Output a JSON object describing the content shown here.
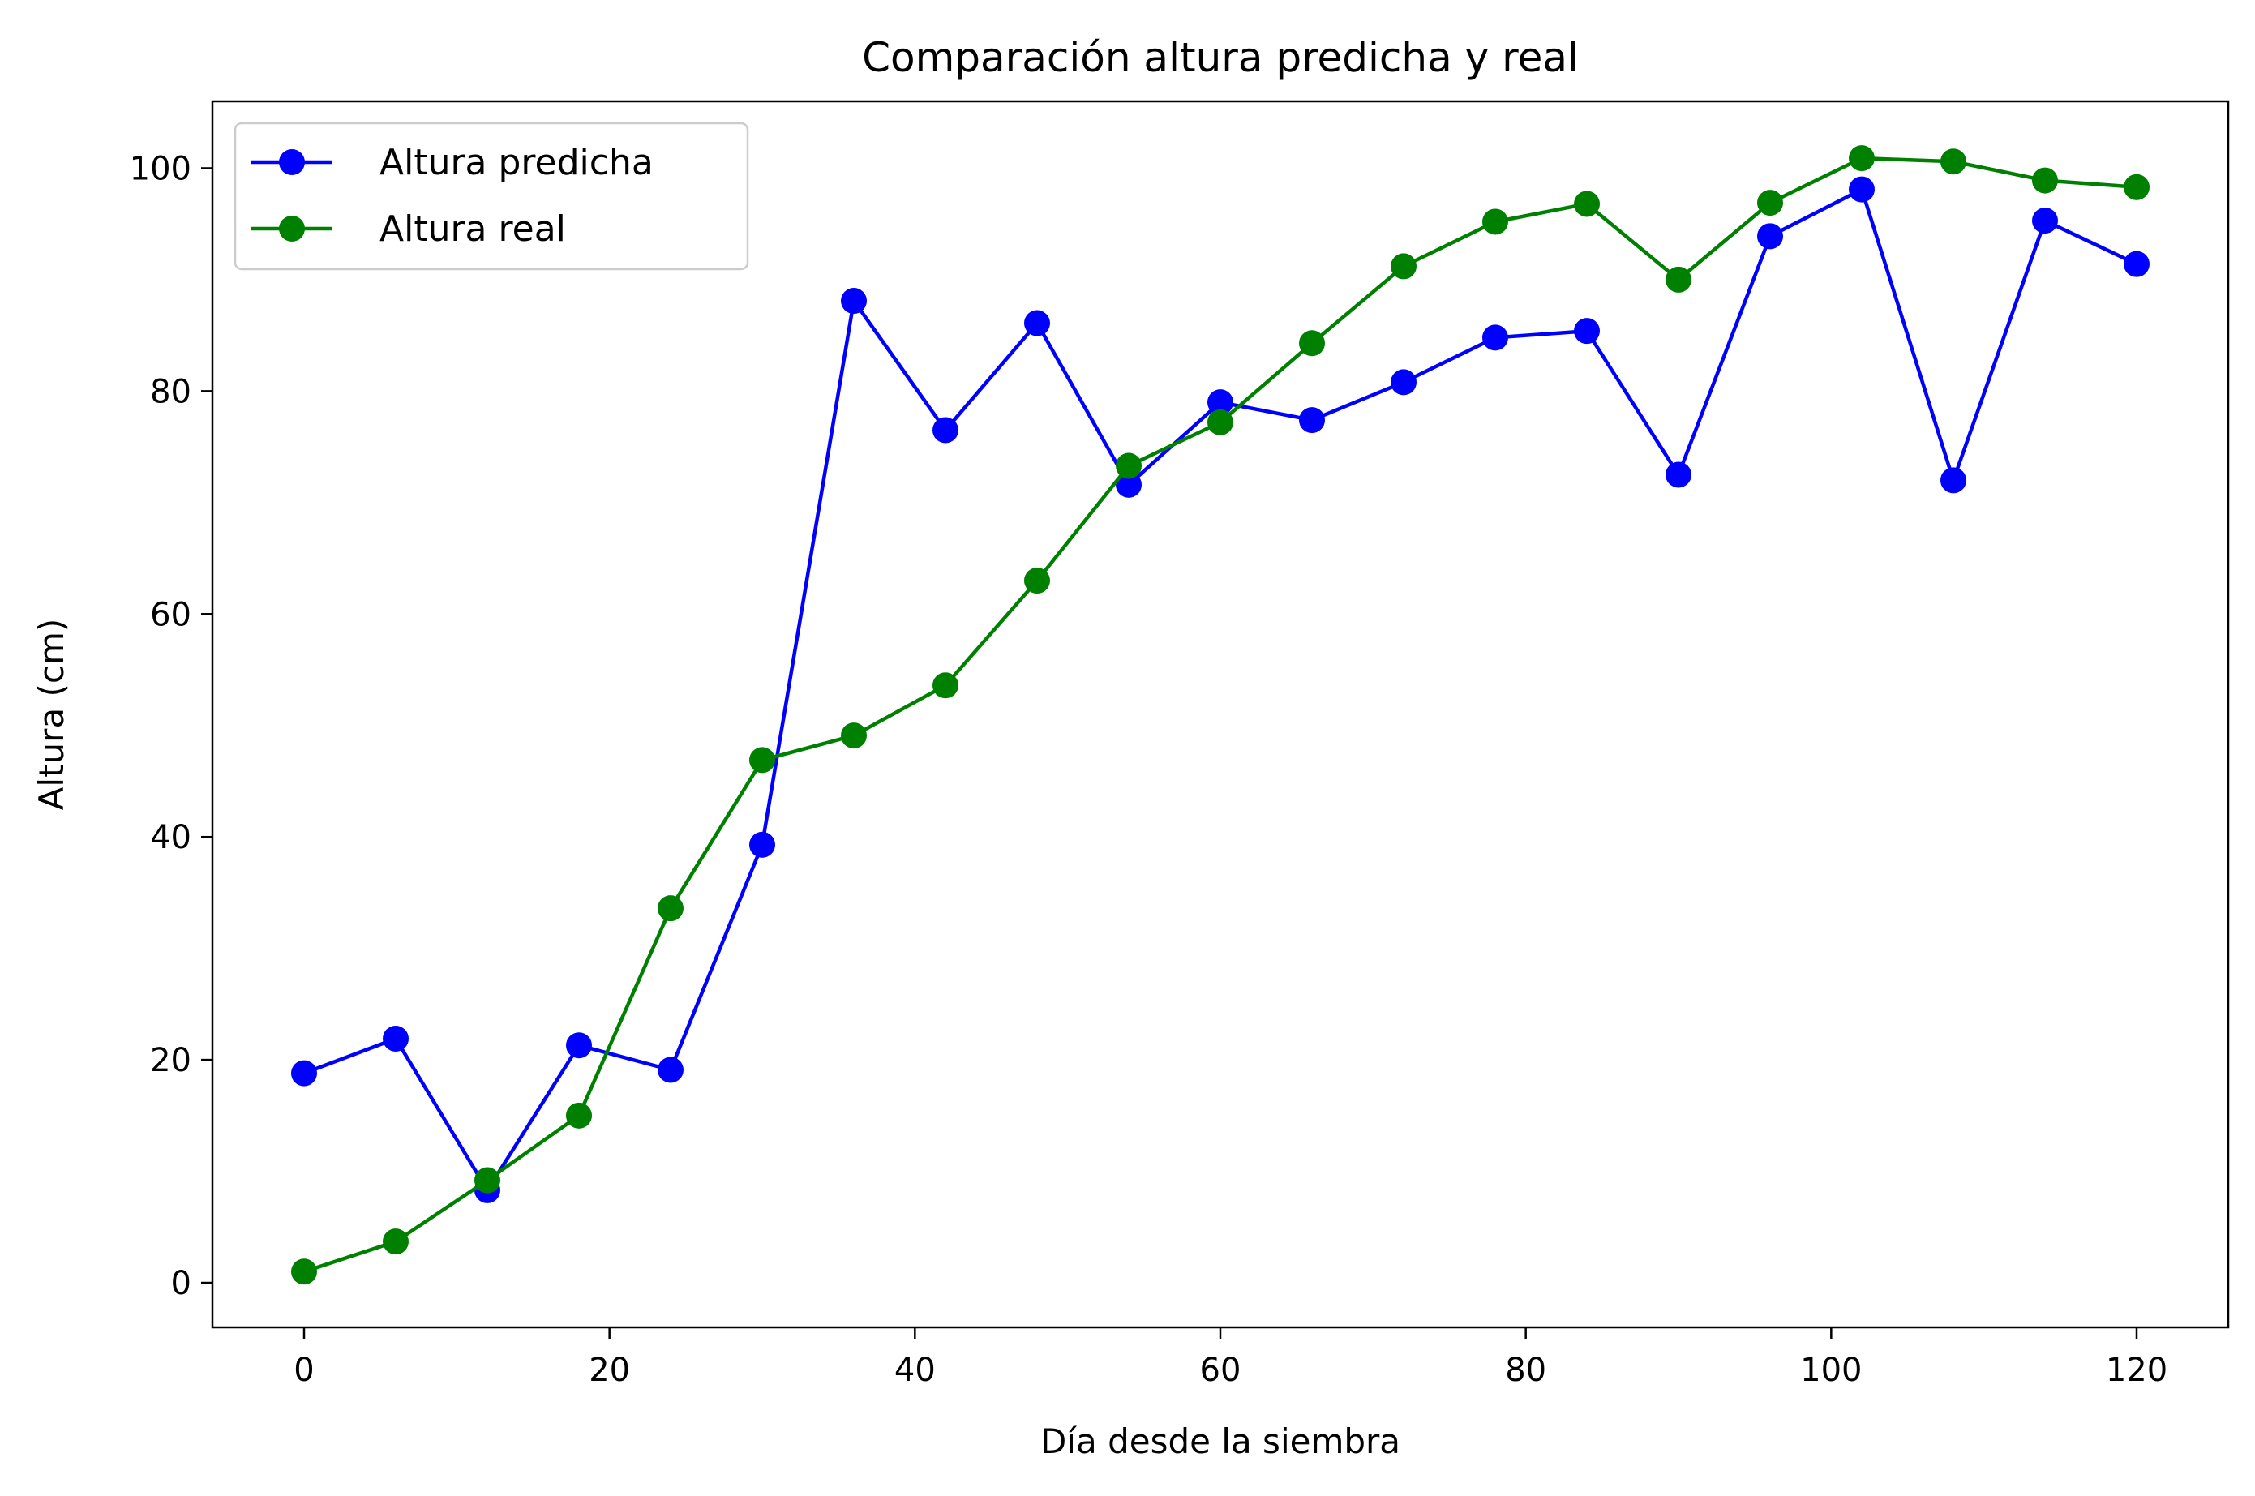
{
  "chart_data": {
    "type": "line",
    "title": "Comparación altura predicha y real",
    "xlabel": "Día desde la siembra",
    "ylabel": "Altura (cm)",
    "xlim": [
      -6,
      126
    ],
    "ylim": [
      -4,
      106
    ],
    "xticks": [
      0,
      20,
      40,
      60,
      80,
      100,
      120
    ],
    "yticks": [
      0,
      20,
      40,
      60,
      80,
      100
    ],
    "grid": false,
    "legend_position": "upper-left",
    "x": [
      0,
      6,
      12,
      18,
      24,
      30,
      36,
      42,
      48,
      54,
      60,
      66,
      72,
      78,
      84,
      90,
      96,
      102,
      108,
      114,
      120
    ],
    "series": [
      {
        "name": "Altura predicha",
        "color": "#0000ff",
        "marker": "circle",
        "values": [
          18.8,
          21.9,
          8.3,
          21.3,
          19.1,
          39.3,
          88.1,
          76.5,
          86.1,
          71.6,
          79.0,
          77.4,
          80.8,
          84.8,
          85.4,
          72.5,
          93.9,
          98.1,
          72.0,
          95.3,
          91.4
        ]
      },
      {
        "name": "Altura real",
        "color": "#008000",
        "marker": "circle",
        "values": [
          1.0,
          3.7,
          9.2,
          15.0,
          33.6,
          46.9,
          49.1,
          53.6,
          63.0,
          73.3,
          77.2,
          84.3,
          91.2,
          95.2,
          96.8,
          90.0,
          96.9,
          100.9,
          100.6,
          98.9,
          98.3
        ]
      }
    ]
  }
}
